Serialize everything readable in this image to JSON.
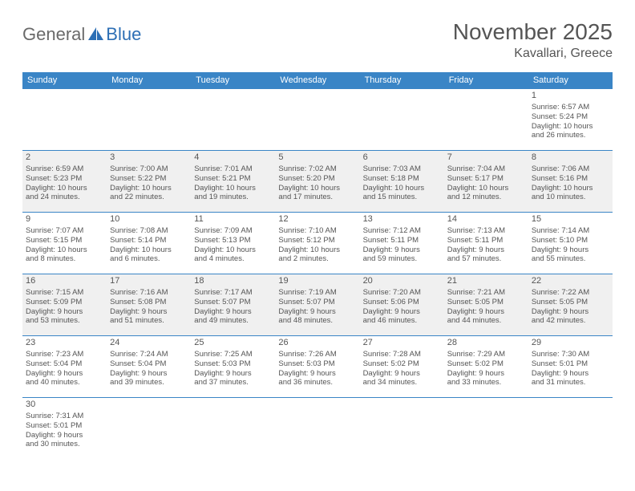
{
  "logo": {
    "text1": "General",
    "text2": "Blue"
  },
  "title": "November 2025",
  "location": "Kavallari, Greece",
  "colors": {
    "header_bg": "#3a85c6",
    "header_text": "#ffffff",
    "cell_line": "#3a85c6",
    "shade_bg": "#f0f0f0",
    "text": "#555555",
    "logo_gray": "#6a6a6a",
    "logo_blue": "#2d6fb5",
    "page_bg": "#ffffff"
  },
  "day_headers": [
    "Sunday",
    "Monday",
    "Tuesday",
    "Wednesday",
    "Thursday",
    "Friday",
    "Saturday"
  ],
  "weeks": [
    [
      null,
      null,
      null,
      null,
      null,
      null,
      {
        "n": "1",
        "sr": "Sunrise: 6:57 AM",
        "ss": "Sunset: 5:24 PM",
        "d1": "Daylight: 10 hours",
        "d2": "and 26 minutes."
      }
    ],
    [
      {
        "n": "2",
        "sr": "Sunrise: 6:59 AM",
        "ss": "Sunset: 5:23 PM",
        "d1": "Daylight: 10 hours",
        "d2": "and 24 minutes."
      },
      {
        "n": "3",
        "sr": "Sunrise: 7:00 AM",
        "ss": "Sunset: 5:22 PM",
        "d1": "Daylight: 10 hours",
        "d2": "and 22 minutes."
      },
      {
        "n": "4",
        "sr": "Sunrise: 7:01 AM",
        "ss": "Sunset: 5:21 PM",
        "d1": "Daylight: 10 hours",
        "d2": "and 19 minutes."
      },
      {
        "n": "5",
        "sr": "Sunrise: 7:02 AM",
        "ss": "Sunset: 5:20 PM",
        "d1": "Daylight: 10 hours",
        "d2": "and 17 minutes."
      },
      {
        "n": "6",
        "sr": "Sunrise: 7:03 AM",
        "ss": "Sunset: 5:18 PM",
        "d1": "Daylight: 10 hours",
        "d2": "and 15 minutes."
      },
      {
        "n": "7",
        "sr": "Sunrise: 7:04 AM",
        "ss": "Sunset: 5:17 PM",
        "d1": "Daylight: 10 hours",
        "d2": "and 12 minutes."
      },
      {
        "n": "8",
        "sr": "Sunrise: 7:06 AM",
        "ss": "Sunset: 5:16 PM",
        "d1": "Daylight: 10 hours",
        "d2": "and 10 minutes."
      }
    ],
    [
      {
        "n": "9",
        "sr": "Sunrise: 7:07 AM",
        "ss": "Sunset: 5:15 PM",
        "d1": "Daylight: 10 hours",
        "d2": "and 8 minutes."
      },
      {
        "n": "10",
        "sr": "Sunrise: 7:08 AM",
        "ss": "Sunset: 5:14 PM",
        "d1": "Daylight: 10 hours",
        "d2": "and 6 minutes."
      },
      {
        "n": "11",
        "sr": "Sunrise: 7:09 AM",
        "ss": "Sunset: 5:13 PM",
        "d1": "Daylight: 10 hours",
        "d2": "and 4 minutes."
      },
      {
        "n": "12",
        "sr": "Sunrise: 7:10 AM",
        "ss": "Sunset: 5:12 PM",
        "d1": "Daylight: 10 hours",
        "d2": "and 2 minutes."
      },
      {
        "n": "13",
        "sr": "Sunrise: 7:12 AM",
        "ss": "Sunset: 5:11 PM",
        "d1": "Daylight: 9 hours",
        "d2": "and 59 minutes."
      },
      {
        "n": "14",
        "sr": "Sunrise: 7:13 AM",
        "ss": "Sunset: 5:11 PM",
        "d1": "Daylight: 9 hours",
        "d2": "and 57 minutes."
      },
      {
        "n": "15",
        "sr": "Sunrise: 7:14 AM",
        "ss": "Sunset: 5:10 PM",
        "d1": "Daylight: 9 hours",
        "d2": "and 55 minutes."
      }
    ],
    [
      {
        "n": "16",
        "sr": "Sunrise: 7:15 AM",
        "ss": "Sunset: 5:09 PM",
        "d1": "Daylight: 9 hours",
        "d2": "and 53 minutes."
      },
      {
        "n": "17",
        "sr": "Sunrise: 7:16 AM",
        "ss": "Sunset: 5:08 PM",
        "d1": "Daylight: 9 hours",
        "d2": "and 51 minutes."
      },
      {
        "n": "18",
        "sr": "Sunrise: 7:17 AM",
        "ss": "Sunset: 5:07 PM",
        "d1": "Daylight: 9 hours",
        "d2": "and 49 minutes."
      },
      {
        "n": "19",
        "sr": "Sunrise: 7:19 AM",
        "ss": "Sunset: 5:07 PM",
        "d1": "Daylight: 9 hours",
        "d2": "and 48 minutes."
      },
      {
        "n": "20",
        "sr": "Sunrise: 7:20 AM",
        "ss": "Sunset: 5:06 PM",
        "d1": "Daylight: 9 hours",
        "d2": "and 46 minutes."
      },
      {
        "n": "21",
        "sr": "Sunrise: 7:21 AM",
        "ss": "Sunset: 5:05 PM",
        "d1": "Daylight: 9 hours",
        "d2": "and 44 minutes."
      },
      {
        "n": "22",
        "sr": "Sunrise: 7:22 AM",
        "ss": "Sunset: 5:05 PM",
        "d1": "Daylight: 9 hours",
        "d2": "and 42 minutes."
      }
    ],
    [
      {
        "n": "23",
        "sr": "Sunrise: 7:23 AM",
        "ss": "Sunset: 5:04 PM",
        "d1": "Daylight: 9 hours",
        "d2": "and 40 minutes."
      },
      {
        "n": "24",
        "sr": "Sunrise: 7:24 AM",
        "ss": "Sunset: 5:04 PM",
        "d1": "Daylight: 9 hours",
        "d2": "and 39 minutes."
      },
      {
        "n": "25",
        "sr": "Sunrise: 7:25 AM",
        "ss": "Sunset: 5:03 PM",
        "d1": "Daylight: 9 hours",
        "d2": "and 37 minutes."
      },
      {
        "n": "26",
        "sr": "Sunrise: 7:26 AM",
        "ss": "Sunset: 5:03 PM",
        "d1": "Daylight: 9 hours",
        "d2": "and 36 minutes."
      },
      {
        "n": "27",
        "sr": "Sunrise: 7:28 AM",
        "ss": "Sunset: 5:02 PM",
        "d1": "Daylight: 9 hours",
        "d2": "and 34 minutes."
      },
      {
        "n": "28",
        "sr": "Sunrise: 7:29 AM",
        "ss": "Sunset: 5:02 PM",
        "d1": "Daylight: 9 hours",
        "d2": "and 33 minutes."
      },
      {
        "n": "29",
        "sr": "Sunrise: 7:30 AM",
        "ss": "Sunset: 5:01 PM",
        "d1": "Daylight: 9 hours",
        "d2": "and 31 minutes."
      }
    ],
    [
      {
        "n": "30",
        "sr": "Sunrise: 7:31 AM",
        "ss": "Sunset: 5:01 PM",
        "d1": "Daylight: 9 hours",
        "d2": "and 30 minutes."
      },
      null,
      null,
      null,
      null,
      null,
      null
    ]
  ]
}
